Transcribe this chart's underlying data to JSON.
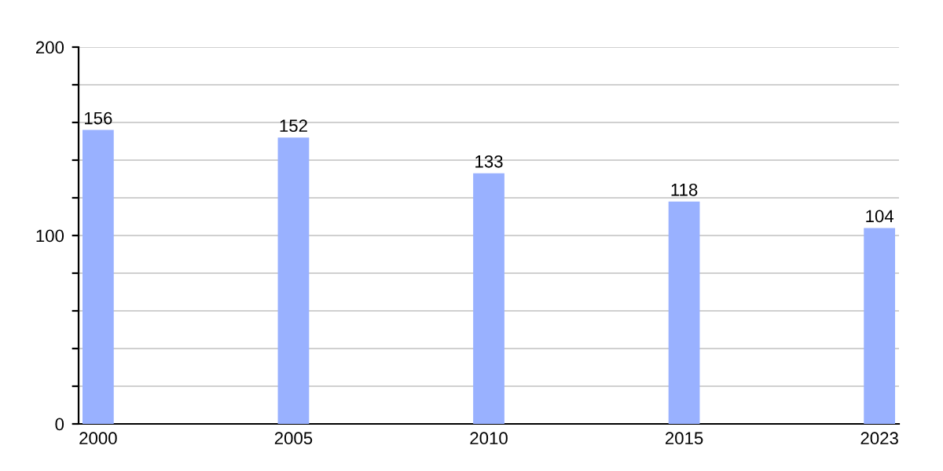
{
  "chart_data": {
    "type": "bar",
    "categories": [
      "2000",
      "2005",
      "2010",
      "2015",
      "2023"
    ],
    "values": [
      156,
      152,
      133,
      118,
      104
    ],
    "color": "#99b1ff",
    "data_labels": true,
    "grid": "y",
    "ylim": [
      0,
      200
    ],
    "yticks": [
      0,
      {
        "value": 20,
        "label": null
      },
      {
        "value": 40,
        "label": null
      },
      {
        "value": 60,
        "label": null
      },
      {
        "value": 80,
        "label": null
      },
      100,
      {
        "value": 120,
        "label": null
      },
      {
        "value": 140,
        "label": null
      },
      {
        "value": 160,
        "label": null
      },
      {
        "value": 180,
        "label": null
      },
      200
    ]
  }
}
